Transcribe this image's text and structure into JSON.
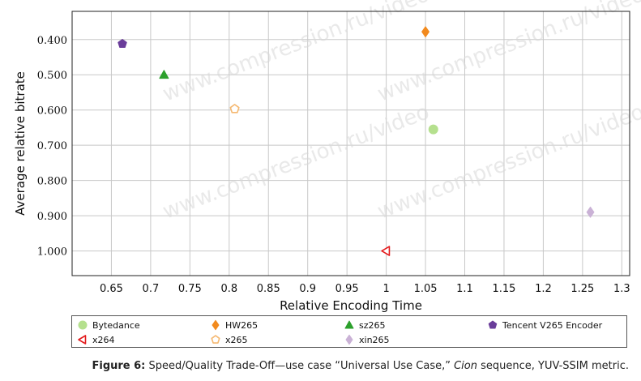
{
  "chart_data": {
    "type": "scatter",
    "xlabel": "Relative Encoding Time",
    "ylabel": "Average relative bitrate",
    "xlim": [
      0.6,
      1.31
    ],
    "ylim": [
      0.32,
      1.07
    ],
    "y_inverted": true,
    "grid": true,
    "legend_placement": "bottom",
    "x_ticks": [
      "0.65",
      "0.7",
      "0.75",
      "0.8",
      "0.85",
      "0.9",
      "0.95",
      "1",
      "1.05",
      "1.1",
      "1.15",
      "1.2",
      "1.25",
      "1.3"
    ],
    "x_tick_values": [
      0.65,
      0.7,
      0.75,
      0.8,
      0.85,
      0.9,
      0.95,
      1.0,
      1.05,
      1.1,
      1.15,
      1.2,
      1.25,
      1.3
    ],
    "y_ticks": [
      "0.400",
      "0.500",
      "0.600",
      "0.700",
      "0.800",
      "0.900",
      "1.000"
    ],
    "y_tick_values": [
      0.4,
      0.5,
      0.6,
      0.7,
      0.8,
      0.9,
      1.0
    ],
    "series": [
      {
        "name": "Bytedance",
        "marker": "circle",
        "color": "#b5e08e",
        "filled": true,
        "x": 1.06,
        "y": 0.655
      },
      {
        "name": "HW265",
        "marker": "diamond",
        "color": "#f28a1e",
        "filled": true,
        "x": 1.05,
        "y": 0.378
      },
      {
        "name": "sz265",
        "marker": "triangle-up",
        "color": "#2ca02c",
        "filled": true,
        "x": 0.717,
        "y": 0.5
      },
      {
        "name": "Tencent V265 Encoder",
        "marker": "pentagon",
        "color": "#6a3d9a",
        "filled": true,
        "x": 0.664,
        "y": 0.412
      },
      {
        "name": "x264",
        "marker": "triangle-left",
        "color": "#e31a1c",
        "filled": false,
        "x": 1.0,
        "y": 1.0
      },
      {
        "name": "x265",
        "marker": "pentagon",
        "color": "#f5b870",
        "filled": false,
        "x": 0.807,
        "y": 0.597
      },
      {
        "name": "xin265",
        "marker": "diamond",
        "color": "#cab2d6",
        "filled": true,
        "x": 1.26,
        "y": 0.89
      }
    ]
  },
  "watermark": "www.compression.ru/video",
  "caption": {
    "label": "Figure 6:",
    "text_before": " Speed/Quality Trade-Off—use case “Universal Use Case,” ",
    "sequence": "Cion",
    "text_after": " sequence, YUV-SSIM metric."
  }
}
